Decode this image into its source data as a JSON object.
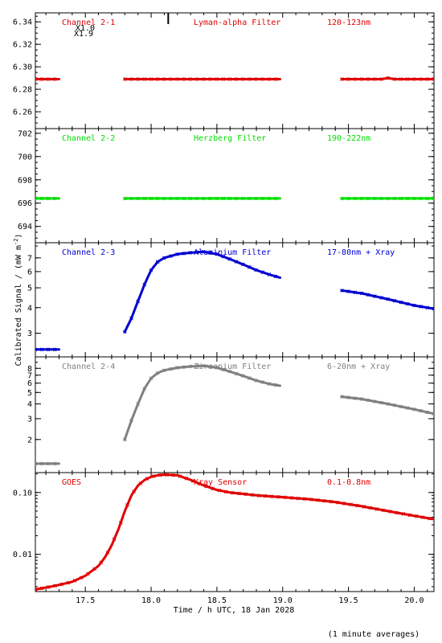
{
  "figure": {
    "xlabel": "Time / h UTC, 18 Jan 2028",
    "ylabel": "Calibrated Signal / (mW m",
    "ylabel_sup": "-2",
    "ylabel_close": ")",
    "footnote": "(1 minute averages)",
    "xticks": [
      "17.5",
      "18.0",
      "18.5",
      "19.0",
      "19.5",
      "20.0"
    ]
  },
  "colors": {
    "red": "#e00000",
    "green": "#00e000",
    "blue": "#0000d0",
    "gray": "#808080",
    "axis": "#000000"
  },
  "chart_data": [
    {
      "type": "scatter",
      "channel": "Channel 2-1",
      "filter": "Lyman-alpha Filter",
      "band": "120-123nm",
      "color": "red",
      "yscale": "linear",
      "ylim": [
        6.245,
        6.348
      ],
      "yticks": [
        6.26,
        6.28,
        6.3,
        6.32,
        6.34
      ],
      "ytick_labels": [
        "6.26",
        "6.28",
        "6.30",
        "6.32",
        "6.34"
      ],
      "annotations": [
        "X1.0",
        "X1.9"
      ],
      "segments": [
        {
          "x": [
            17.12,
            17.3
          ],
          "y": [
            6.289,
            6.289
          ]
        },
        {
          "x": [
            17.8,
            18.98
          ],
          "y": [
            6.289,
            6.289
          ]
        },
        {
          "x": [
            19.45,
            19.75,
            19.8,
            19.85,
            20.15
          ],
          "y": [
            6.289,
            6.289,
            6.29,
            6.289,
            6.289
          ]
        }
      ]
    },
    {
      "type": "scatter",
      "channel": "Channel 2-2",
      "filter": "Herzberg Filter",
      "band": "190-222nm",
      "color": "green",
      "yscale": "linear",
      "ylim": [
        692.6,
        702.4
      ],
      "yticks": [
        694,
        696,
        698,
        700,
        702
      ],
      "ytick_labels": [
        "694",
        "696",
        "698",
        "700",
        "702"
      ],
      "segments": [
        {
          "x": [
            17.12,
            17.3
          ],
          "y": [
            696.4,
            696.4
          ]
        },
        {
          "x": [
            17.8,
            18.98
          ],
          "y": [
            696.4,
            696.4
          ]
        },
        {
          "x": [
            19.45,
            20.15
          ],
          "y": [
            696.4,
            696.4
          ]
        }
      ]
    },
    {
      "type": "scatter",
      "channel": "Channel 2-3",
      "filter": "Aluminium Filter",
      "band": "17-80nm + Xray",
      "color": "blue",
      "yscale": "log",
      "ylim": [
        2.3,
        8.3
      ],
      "yticks": [
        3,
        4,
        5,
        6,
        7
      ],
      "ytick_labels": [
        "3",
        "4",
        "5",
        "6",
        "7"
      ],
      "segments": [
        {
          "x": [
            17.12,
            17.3
          ],
          "y": [
            2.5,
            2.5
          ]
        },
        {
          "x": [
            17.8,
            17.85,
            17.9,
            17.95,
            18.0,
            18.05,
            18.1,
            18.2,
            18.3,
            18.4,
            18.5,
            18.6,
            18.7,
            18.8,
            18.9,
            18.98
          ],
          "y": [
            3.05,
            3.55,
            4.3,
            5.2,
            6.1,
            6.7,
            7.0,
            7.3,
            7.42,
            7.5,
            7.3,
            6.9,
            6.5,
            6.1,
            5.8,
            5.6
          ]
        },
        {
          "x": [
            19.45,
            19.6,
            19.8,
            20.0,
            20.15
          ],
          "y": [
            4.85,
            4.7,
            4.4,
            4.1,
            3.95
          ]
        }
      ]
    },
    {
      "type": "scatter",
      "channel": "Channel 2-4",
      "filter": "Zirconium Filter",
      "band": "6-20nm + Xray",
      "color": "gray",
      "yscale": "log",
      "ylim": [
        1.05,
        10.0
      ],
      "yticks": [
        2,
        3,
        4,
        5,
        6,
        7,
        8
      ],
      "ytick_labels": [
        "2",
        "3",
        "4",
        "5",
        "6",
        "7",
        "8"
      ],
      "segments": [
        {
          "x": [
            17.12,
            17.3
          ],
          "y": [
            1.25,
            1.25
          ]
        },
        {
          "x": [
            17.8,
            17.85,
            17.9,
            17.95,
            18.0,
            18.05,
            18.1,
            18.2,
            18.3,
            18.4,
            18.5,
            18.6,
            18.7,
            18.8,
            18.9,
            18.98
          ],
          "y": [
            2.0,
            2.9,
            4.0,
            5.4,
            6.6,
            7.3,
            7.7,
            8.1,
            8.3,
            8.4,
            8.1,
            7.5,
            6.9,
            6.3,
            5.9,
            5.7
          ]
        },
        {
          "x": [
            19.45,
            19.6,
            19.8,
            20.0,
            20.15
          ],
          "y": [
            4.6,
            4.4,
            4.0,
            3.6,
            3.3
          ]
        }
      ]
    },
    {
      "type": "scatter",
      "channel": "GOES",
      "filter": "Xray Sensor",
      "band": "0.1-0.8nm",
      "color": "red",
      "yscale": "log",
      "ylim": [
        0.0025,
        0.21
      ],
      "yticks": [
        0.01,
        0.1
      ],
      "ytick_labels": [
        "0.01",
        "0.10"
      ],
      "segments": [
        {
          "x": [
            17.12,
            17.2,
            17.3,
            17.4,
            17.5,
            17.6,
            17.65,
            17.7,
            17.75,
            17.8,
            17.85,
            17.9,
            17.95,
            18.0,
            18.05,
            18.1,
            18.2,
            18.3,
            18.4,
            18.5,
            18.6,
            18.7,
            18.8,
            19.0,
            19.2,
            19.4,
            19.6,
            19.8,
            20.0,
            20.15
          ],
          "y": [
            0.0027,
            0.0029,
            0.0032,
            0.0036,
            0.0045,
            0.0065,
            0.009,
            0.014,
            0.025,
            0.05,
            0.09,
            0.13,
            0.16,
            0.18,
            0.19,
            0.195,
            0.19,
            0.16,
            0.13,
            0.11,
            0.1,
            0.095,
            0.09,
            0.084,
            0.078,
            0.07,
            0.06,
            0.05,
            0.042,
            0.037
          ]
        }
      ]
    }
  ]
}
